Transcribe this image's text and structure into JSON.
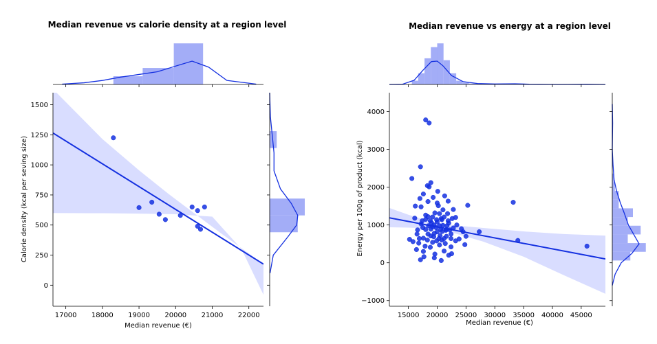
{
  "colors": {
    "accent": "#1430e0",
    "band": "#d5d9ff",
    "hist": "#8c98f5"
  },
  "chart_data": [
    {
      "type": "scatter",
      "title": "Median revenue vs calorie density at a region level",
      "xlabel": "Median revenue (€)",
      "ylabel": "Calorie density (kcal per seving size)",
      "xlim": [
        16650,
        22400
      ],
      "ylim": [
        -175,
        1600
      ],
      "xticks": [
        "17000",
        "18000",
        "19000",
        "20000",
        "21000",
        "22000"
      ],
      "yticks": [
        "0",
        "250",
        "500",
        "750",
        "1000",
        "1250",
        "1500"
      ],
      "points": [
        [
          18300,
          1225
        ],
        [
          19000,
          645
        ],
        [
          19350,
          690
        ],
        [
          19550,
          590
        ],
        [
          19720,
          545
        ],
        [
          20130,
          580
        ],
        [
          20450,
          650
        ],
        [
          20600,
          620
        ],
        [
          20790,
          650
        ],
        [
          20600,
          490
        ],
        [
          20680,
          465
        ]
      ],
      "regression": {
        "x": [
          16650,
          22400
        ],
        "y": [
          1265,
          175
        ]
      },
      "ci_upper": [
        [
          16650,
          1630
        ],
        [
          18000,
          1215
        ],
        [
          19000,
          955
        ],
        [
          19800,
          760
        ],
        [
          20500,
          600
        ],
        [
          21200,
          440
        ],
        [
          22400,
          175
        ]
      ],
      "ci_lower": [
        [
          16650,
          600
        ],
        [
          18000,
          598
        ],
        [
          19000,
          595
        ],
        [
          20000,
          590
        ],
        [
          21000,
          570
        ],
        [
          21800,
          300
        ],
        [
          22400,
          -80
        ]
      ],
      "marginal_x_hist": {
        "bins": [
          18300,
          19100,
          19950,
          20750
        ],
        "counts": [
          1,
          2,
          5
        ]
      },
      "marginal_y_hist": {
        "bins": [
          440,
          580,
          720,
          860,
          1000,
          1140,
          1280
        ],
        "counts": [
          4,
          5,
          0,
          0,
          0,
          1
        ]
      },
      "marginal_x_kde": [
        [
          16900,
          0.01
        ],
        [
          17500,
          0.05
        ],
        [
          18000,
          0.12
        ],
        [
          18500,
          0.22
        ],
        [
          19000,
          0.3
        ],
        [
          19500,
          0.38
        ],
        [
          20000,
          0.55
        ],
        [
          20450,
          0.7
        ],
        [
          20900,
          0.52
        ],
        [
          21400,
          0.12
        ],
        [
          22200,
          0.01
        ]
      ],
      "marginal_y_kde": [
        [
          100,
          0.01
        ],
        [
          250,
          0.1
        ],
        [
          400,
          0.5
        ],
        [
          500,
          0.75
        ],
        [
          580,
          0.78
        ],
        [
          680,
          0.6
        ],
        [
          800,
          0.3
        ],
        [
          950,
          0.12
        ],
        [
          1100,
          0.12
        ],
        [
          1250,
          0.07
        ],
        [
          1400,
          0.02
        ],
        [
          1600,
          0.0
        ]
      ]
    },
    {
      "type": "scatter",
      "title": "Median revenue vs energy at a region level",
      "xlabel": "Median revenue (€)",
      "ylabel": "Energy per 100g of product (kcal)",
      "xlim": [
        11700,
        49200
      ],
      "ylim": [
        -1150,
        4500
      ],
      "xticks": [
        "15000",
        "20000",
        "25000",
        "30000",
        "35000",
        "40000",
        "45000"
      ],
      "yticks": [
        "−1000",
        "0",
        "1000",
        "2000",
        "3000",
        "4000"
      ],
      "points": [
        [
          18000,
          3780
        ],
        [
          18600,
          3700
        ],
        [
          17100,
          2540
        ],
        [
          15600,
          2230
        ],
        [
          33200,
          1600
        ],
        [
          34000,
          590
        ],
        [
          46000,
          440
        ],
        [
          27300,
          820
        ],
        [
          25300,
          1520
        ],
        [
          16200,
          1500
        ],
        [
          17000,
          1700
        ],
        [
          17600,
          1820
        ],
        [
          18600,
          2010
        ],
        [
          19300,
          1730
        ],
        [
          20200,
          1510
        ],
        [
          21000,
          1400
        ],
        [
          21800,
          1300
        ],
        [
          22600,
          1170
        ],
        [
          23400,
          1000
        ],
        [
          24200,
          900
        ],
        [
          25000,
          700
        ],
        [
          24800,
          480
        ],
        [
          16100,
          1180
        ],
        [
          16600,
          870
        ],
        [
          17200,
          1030
        ],
        [
          17600,
          650
        ],
        [
          18000,
          1260
        ],
        [
          18400,
          760
        ],
        [
          18800,
          1110
        ],
        [
          19200,
          540
        ],
        [
          19600,
          1320
        ],
        [
          20000,
          820
        ],
        [
          20400,
          980
        ],
        [
          20800,
          600
        ],
        [
          21200,
          1210
        ],
        [
          21600,
          700
        ],
        [
          22000,
          1050
        ],
        [
          22400,
          420
        ],
        [
          22800,
          920
        ],
        [
          23200,
          580
        ],
        [
          16400,
          350
        ],
        [
          16800,
          520
        ],
        [
          17200,
          1480
        ],
        [
          17600,
          300
        ],
        [
          18000,
          880
        ],
        [
          18400,
          1620
        ],
        [
          18800,
          410
        ],
        [
          19200,
          950
        ],
        [
          19600,
          230
        ],
        [
          20000,
          1580
        ],
        [
          20400,
          470
        ],
        [
          20800,
          1140
        ],
        [
          21200,
          310
        ],
        [
          21600,
          880
        ],
        [
          22000,
          200
        ],
        [
          22400,
          760
        ],
        [
          22800,
          1410
        ],
        [
          23200,
          1200
        ],
        [
          17100,
          80
        ],
        [
          17700,
          160
        ],
        [
          18300,
          2040
        ],
        [
          18900,
          2120
        ],
        [
          19500,
          130
        ],
        [
          20100,
          1890
        ],
        [
          20700,
          60
        ],
        [
          21300,
          1770
        ],
        [
          21900,
          1630
        ],
        [
          22500,
          240
        ],
        [
          23800,
          630
        ],
        [
          24500,
          820
        ],
        [
          16900,
          640
        ],
        [
          17400,
          1110
        ],
        [
          17900,
          440
        ],
        [
          18400,
          1220
        ],
        [
          18900,
          710
        ],
        [
          19400,
          1000
        ],
        [
          19900,
          580
        ],
        [
          20400,
          1300
        ],
        [
          20900,
          830
        ],
        [
          21400,
          510
        ],
        [
          21900,
          1110
        ],
        [
          22400,
          640
        ],
        [
          18000,
          1150
        ],
        [
          18500,
          980
        ],
        [
          19000,
          1060
        ],
        [
          19500,
          780
        ],
        [
          20000,
          1080
        ],
        [
          20500,
          720
        ],
        [
          21000,
          990
        ],
        [
          21500,
          860
        ],
        [
          19200,
          1210
        ],
        [
          19800,
          930
        ],
        [
          20300,
          640
        ],
        [
          20700,
          1170
        ],
        [
          18300,
          600
        ],
        [
          18900,
          890
        ],
        [
          19400,
          690
        ],
        [
          19900,
          1140
        ],
        [
          20600,
          880
        ],
        [
          21200,
          640
        ],
        [
          21700,
          980
        ],
        [
          22200,
          870
        ],
        [
          17500,
          930
        ],
        [
          16500,
          760
        ],
        [
          15800,
          560
        ],
        [
          15200,
          620
        ]
      ],
      "regression": {
        "x": [
          11700,
          49200
        ],
        "y": [
          1190,
          100
        ]
      },
      "ci_upper": [
        [
          11700,
          1450
        ],
        [
          15000,
          1270
        ],
        [
          18000,
          1130
        ],
        [
          20000,
          1060
        ],
        [
          23000,
          990
        ],
        [
          28000,
          920
        ],
        [
          35000,
          830
        ],
        [
          42000,
          760
        ],
        [
          49200,
          720
        ]
      ],
      "ci_lower": [
        [
          11700,
          940
        ],
        [
          15000,
          930
        ],
        [
          18000,
          915
        ],
        [
          20000,
          890
        ],
        [
          23000,
          780
        ],
        [
          28000,
          560
        ],
        [
          35000,
          160
        ],
        [
          42000,
          -330
        ],
        [
          49200,
          -820
        ]
      ],
      "marginal_x_hist": {
        "bins": [
          15600,
          16700,
          17800,
          18900,
          20000,
          21100,
          22200,
          23300,
          24400,
          25500,
          26600,
          27700
        ],
        "counts": [
          4,
          12,
          28,
          40,
          44,
          26,
          12,
          4,
          2,
          1,
          1
        ]
      },
      "marginal_y_hist": {
        "bins": [
          60,
          290,
          520,
          750,
          980,
          1210,
          1440,
          1670,
          1900,
          2130,
          2360
        ],
        "counts": [
          14,
          26,
          12,
          22,
          12,
          16,
          5,
          5,
          2,
          1
        ]
      },
      "marginal_x_kde": [
        [
          11700,
          0.0
        ],
        [
          14000,
          0.01
        ],
        [
          16000,
          0.18
        ],
        [
          17500,
          0.6
        ],
        [
          19000,
          0.98
        ],
        [
          20000,
          1.0
        ],
        [
          21000,
          0.8
        ],
        [
          22500,
          0.38
        ],
        [
          24500,
          0.12
        ],
        [
          27000,
          0.04
        ],
        [
          30000,
          0.02
        ],
        [
          33500,
          0.03
        ],
        [
          36000,
          0.01
        ],
        [
          41000,
          0.0
        ],
        [
          46000,
          0.01
        ],
        [
          49200,
          0.0
        ]
      ],
      "marginal_y_kde": [
        [
          -600,
          0.0
        ],
        [
          -300,
          0.08
        ],
        [
          0,
          0.25
        ],
        [
          250,
          0.55
        ],
        [
          500,
          0.75
        ],
        [
          750,
          0.6
        ],
        [
          1000,
          0.45
        ],
        [
          1300,
          0.34
        ],
        [
          1600,
          0.22
        ],
        [
          1900,
          0.12
        ],
        [
          2200,
          0.05
        ],
        [
          2600,
          0.02
        ],
        [
          3000,
          0.0
        ],
        [
          3700,
          0.01
        ],
        [
          4200,
          0.0
        ]
      ]
    }
  ]
}
